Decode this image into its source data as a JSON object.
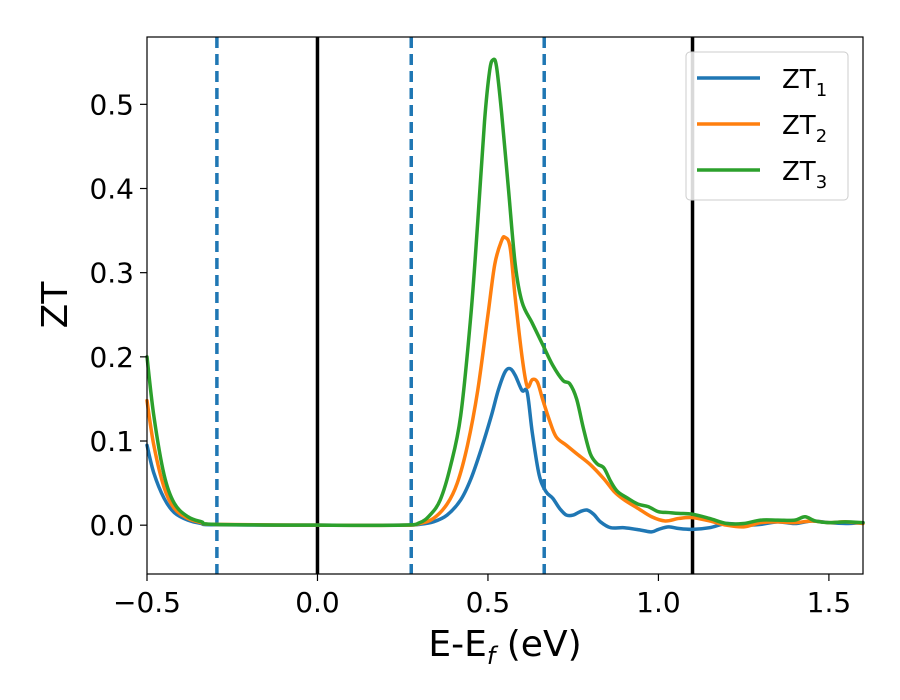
{
  "chart_data": {
    "type": "line",
    "xlabel": "E-E",
    "xlabel_subscript": "f",
    "xlabel_unit": " (eV)",
    "ylabel": "ZT",
    "xlim": [
      -0.5,
      1.6
    ],
    "ylim": [
      -0.058,
      0.58
    ],
    "x_ticks": [
      -0.5,
      0.0,
      0.5,
      1.0,
      1.5
    ],
    "x_tick_labels": [
      "−0.5",
      "0.0",
      "0.5",
      "1.0",
      "1.5"
    ],
    "y_ticks": [
      0.0,
      0.1,
      0.2,
      0.3,
      0.4,
      0.5
    ],
    "y_tick_labels": [
      "0.0",
      "0.1",
      "0.2",
      "0.3",
      "0.4",
      "0.5"
    ],
    "grid": false,
    "legend": {
      "placement": "top-right"
    },
    "vertical_lines": [
      {
        "x": -0.295,
        "style": "dashed",
        "color": "#1f77b4"
      },
      {
        "x": 0.0,
        "style": "solid",
        "color": "#000000"
      },
      {
        "x": 0.275,
        "style": "dashed",
        "color": "#1f77b4"
      },
      {
        "x": 0.665,
        "style": "dashed",
        "color": "#1f77b4"
      },
      {
        "x": 1.1,
        "style": "solid",
        "color": "#000000"
      }
    ],
    "series": [
      {
        "name": "ZT",
        "subscript": "1",
        "color": "#1f77b4",
        "points": [
          [
            -0.5,
            0.095
          ],
          [
            -0.48,
            0.062
          ],
          [
            -0.45,
            0.032
          ],
          [
            -0.42,
            0.015
          ],
          [
            -0.38,
            0.006
          ],
          [
            -0.34,
            0.002
          ],
          [
            -0.3,
            0.0005
          ],
          [
            0.0,
            0.0
          ],
          [
            0.25,
            0.0
          ],
          [
            0.3,
            0.001
          ],
          [
            0.34,
            0.004
          ],
          [
            0.38,
            0.012
          ],
          [
            0.42,
            0.03
          ],
          [
            0.45,
            0.055
          ],
          [
            0.48,
            0.09
          ],
          [
            0.51,
            0.13
          ],
          [
            0.53,
            0.16
          ],
          [
            0.55,
            0.182
          ],
          [
            0.565,
            0.186
          ],
          [
            0.58,
            0.178
          ],
          [
            0.6,
            0.16
          ],
          [
            0.615,
            0.158
          ],
          [
            0.63,
            0.11
          ],
          [
            0.65,
            0.06
          ],
          [
            0.67,
            0.04
          ],
          [
            0.69,
            0.032
          ],
          [
            0.71,
            0.02
          ],
          [
            0.73,
            0.012
          ],
          [
            0.75,
            0.012
          ],
          [
            0.77,
            0.016
          ],
          [
            0.79,
            0.018
          ],
          [
            0.81,
            0.013
          ],
          [
            0.83,
            0.004
          ],
          [
            0.86,
            -0.003
          ],
          [
            0.9,
            -0.003
          ],
          [
            0.95,
            -0.006
          ],
          [
            0.98,
            -0.008
          ],
          [
            1.0,
            -0.005
          ],
          [
            1.03,
            -0.002
          ],
          [
            1.06,
            -0.004
          ],
          [
            1.1,
            -0.005
          ],
          [
            1.15,
            -0.003
          ],
          [
            1.2,
            0.002
          ],
          [
            1.25,
            0.0
          ],
          [
            1.3,
            0.001
          ],
          [
            1.35,
            0.004
          ],
          [
            1.4,
            0.002
          ],
          [
            1.45,
            0.005
          ],
          [
            1.5,
            0.003
          ],
          [
            1.55,
            0.002
          ],
          [
            1.6,
            0.003
          ]
        ]
      },
      {
        "name": "ZT",
        "subscript": "2",
        "color": "#ff7f0e",
        "points": [
          [
            -0.5,
            0.148
          ],
          [
            -0.48,
            0.095
          ],
          [
            -0.45,
            0.045
          ],
          [
            -0.42,
            0.02
          ],
          [
            -0.38,
            0.008
          ],
          [
            -0.34,
            0.003
          ],
          [
            -0.3,
            0.001
          ],
          [
            0.0,
            0.0
          ],
          [
            0.25,
            0.0
          ],
          [
            0.3,
            0.002
          ],
          [
            0.34,
            0.008
          ],
          [
            0.38,
            0.025
          ],
          [
            0.41,
            0.05
          ],
          [
            0.44,
            0.095
          ],
          [
            0.47,
            0.16
          ],
          [
            0.5,
            0.25
          ],
          [
            0.52,
            0.31
          ],
          [
            0.54,
            0.338
          ],
          [
            0.55,
            0.342
          ],
          [
            0.565,
            0.33
          ],
          [
            0.58,
            0.27
          ],
          [
            0.6,
            0.2
          ],
          [
            0.615,
            0.165
          ],
          [
            0.63,
            0.173
          ],
          [
            0.645,
            0.17
          ],
          [
            0.66,
            0.15
          ],
          [
            0.68,
            0.125
          ],
          [
            0.7,
            0.105
          ],
          [
            0.73,
            0.095
          ],
          [
            0.76,
            0.085
          ],
          [
            0.8,
            0.072
          ],
          [
            0.84,
            0.055
          ],
          [
            0.87,
            0.04
          ],
          [
            0.9,
            0.03
          ],
          [
            0.94,
            0.02
          ],
          [
            0.98,
            0.01
          ],
          [
            1.02,
            0.005
          ],
          [
            1.06,
            0.008
          ],
          [
            1.1,
            0.009
          ],
          [
            1.15,
            0.005
          ],
          [
            1.2,
            0.0
          ],
          [
            1.25,
            -0.002
          ],
          [
            1.3,
            0.003
          ],
          [
            1.35,
            0.004
          ],
          [
            1.4,
            0.003
          ],
          [
            1.45,
            0.005
          ],
          [
            1.5,
            0.003
          ],
          [
            1.55,
            0.004
          ],
          [
            1.6,
            0.002
          ]
        ]
      },
      {
        "name": "ZT",
        "subscript": "3",
        "color": "#2ca02c",
        "points": [
          [
            -0.5,
            0.2
          ],
          [
            -0.48,
            0.13
          ],
          [
            -0.45,
            0.06
          ],
          [
            -0.42,
            0.026
          ],
          [
            -0.38,
            0.01
          ],
          [
            -0.34,
            0.004
          ],
          [
            -0.3,
            0.001
          ],
          [
            0.0,
            0.0
          ],
          [
            0.25,
            0.0
          ],
          [
            0.3,
            0.003
          ],
          [
            0.33,
            0.012
          ],
          [
            0.36,
            0.03
          ],
          [
            0.39,
            0.07
          ],
          [
            0.42,
            0.13
          ],
          [
            0.45,
            0.25
          ],
          [
            0.47,
            0.36
          ],
          [
            0.49,
            0.48
          ],
          [
            0.505,
            0.54
          ],
          [
            0.515,
            0.553
          ],
          [
            0.525,
            0.545
          ],
          [
            0.54,
            0.49
          ],
          [
            0.56,
            0.4
          ],
          [
            0.58,
            0.31
          ],
          [
            0.6,
            0.265
          ],
          [
            0.63,
            0.24
          ],
          [
            0.66,
            0.215
          ],
          [
            0.69,
            0.19
          ],
          [
            0.72,
            0.172
          ],
          [
            0.74,
            0.168
          ],
          [
            0.76,
            0.15
          ],
          [
            0.78,
            0.115
          ],
          [
            0.8,
            0.085
          ],
          [
            0.82,
            0.073
          ],
          [
            0.84,
            0.068
          ],
          [
            0.86,
            0.052
          ],
          [
            0.88,
            0.04
          ],
          [
            0.91,
            0.032
          ],
          [
            0.94,
            0.025
          ],
          [
            0.97,
            0.022
          ],
          [
            1.0,
            0.016
          ],
          [
            1.03,
            0.015
          ],
          [
            1.06,
            0.014
          ],
          [
            1.1,
            0.013
          ],
          [
            1.15,
            0.008
          ],
          [
            1.2,
            0.002
          ],
          [
            1.25,
            0.002
          ],
          [
            1.3,
            0.006
          ],
          [
            1.35,
            0.006
          ],
          [
            1.4,
            0.006
          ],
          [
            1.43,
            0.01
          ],
          [
            1.46,
            0.005
          ],
          [
            1.5,
            0.003
          ],
          [
            1.55,
            0.004
          ],
          [
            1.6,
            0.003
          ]
        ]
      }
    ]
  }
}
